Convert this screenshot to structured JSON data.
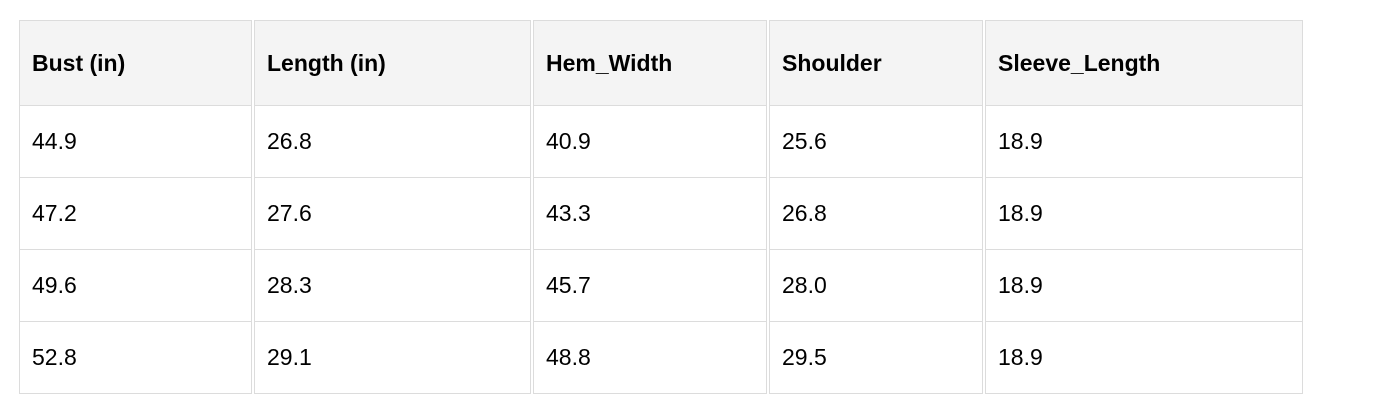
{
  "table": {
    "headers": [
      "Bust (in)",
      "Length (in)",
      "Hem_Width",
      "Shoulder",
      "Sleeve_Length"
    ],
    "rows": [
      [
        "44.9",
        "26.8",
        "40.9",
        "25.6",
        "18.9"
      ],
      [
        "47.2",
        "27.6",
        "43.3",
        "26.8",
        "18.9"
      ],
      [
        "49.6",
        "28.3",
        "45.7",
        "28.0",
        "18.9"
      ],
      [
        "52.8",
        "29.1",
        "48.8",
        "29.5",
        "18.9"
      ]
    ]
  },
  "colors": {
    "header_bg": "#f4f4f4",
    "border": "#dcdcdc"
  }
}
